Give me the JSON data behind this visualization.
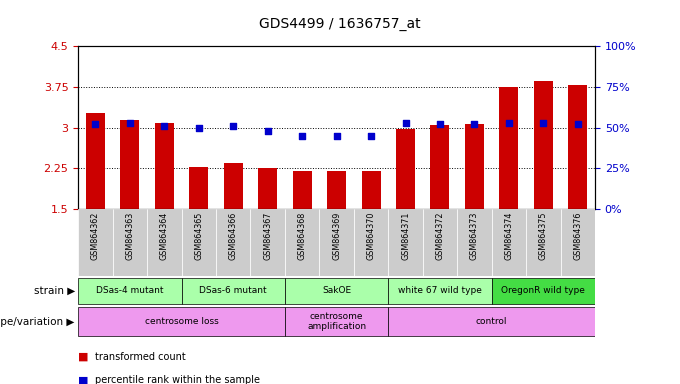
{
  "title": "GDS4499 / 1636757_at",
  "samples": [
    "GSM864362",
    "GSM864363",
    "GSM864364",
    "GSM864365",
    "GSM864366",
    "GSM864367",
    "GSM864368",
    "GSM864369",
    "GSM864370",
    "GSM864371",
    "GSM864372",
    "GSM864373",
    "GSM864374",
    "GSM864375",
    "GSM864376"
  ],
  "transformed_count": [
    3.27,
    3.15,
    3.08,
    2.27,
    2.35,
    2.25,
    2.2,
    2.2,
    2.2,
    2.97,
    3.05,
    3.07,
    3.75,
    3.85,
    3.78
  ],
  "percentile_rank": [
    52,
    53,
    51,
    50,
    51,
    48,
    45,
    45,
    45,
    53,
    52,
    52,
    53,
    53,
    52
  ],
  "ylim_left": [
    1.5,
    4.5
  ],
  "ylim_right": [
    0,
    100
  ],
  "yticks_left": [
    1.5,
    2.25,
    3.0,
    3.75,
    4.5
  ],
  "ytick_labels_left": [
    "1.5",
    "2.25",
    "3",
    "3.75",
    "4.5"
  ],
  "yticks_right": [
    0,
    25,
    50,
    75,
    100
  ],
  "ytick_labels_right": [
    "0%",
    "25%",
    "50%",
    "75%",
    "100%"
  ],
  "bar_color": "#cc0000",
  "dot_color": "#0000cc",
  "strain_groups": [
    {
      "label": "DSas-4 mutant",
      "start": 0,
      "end": 3,
      "color": "#aaffaa"
    },
    {
      "label": "DSas-6 mutant",
      "start": 3,
      "end": 6,
      "color": "#aaffaa"
    },
    {
      "label": "SakOE",
      "start": 6,
      "end": 9,
      "color": "#aaffaa"
    },
    {
      "label": "white 67 wild type",
      "start": 9,
      "end": 12,
      "color": "#aaffaa"
    },
    {
      "label": "OregonR wild type",
      "start": 12,
      "end": 15,
      "color": "#44dd44"
    }
  ],
  "genotype_groups": [
    {
      "label": "centrosome loss",
      "start": 0,
      "end": 6
    },
    {
      "label": "centrosome\namplification",
      "start": 6,
      "end": 9
    },
    {
      "label": "control",
      "start": 9,
      "end": 15
    }
  ],
  "strain_label": "strain",
  "genotype_label": "genotype/variation",
  "legend": [
    {
      "label": "transformed count",
      "color": "#cc0000"
    },
    {
      "label": "percentile rank within the sample",
      "color": "#0000cc"
    }
  ],
  "bg_color": "#ffffff",
  "tick_color_left": "#cc0000",
  "tick_color_right": "#0000cc",
  "sample_bg": "#cccccc",
  "genotype_color": "#ee99ee"
}
